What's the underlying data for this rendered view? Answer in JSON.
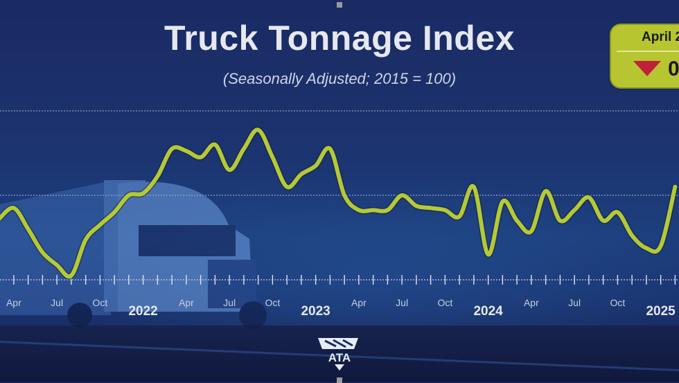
{
  "chart_data": {
    "type": "line",
    "title": "Truck Tonnage Index",
    "subtitle": "(Seasonally Adjusted; 2015 = 100)",
    "xlabel": "",
    "ylabel": "",
    "ylim": [
      110,
      118
    ],
    "grid": true,
    "x_start": "2021-03",
    "series": [
      {
        "name": "Truck Tonnage Index",
        "color": "#b5c935",
        "values": [
          112.9,
          113.4,
          112.4,
          111.3,
          110.7,
          110.2,
          111.9,
          112.6,
          113.2,
          114.0,
          114.1,
          114.9,
          116.2,
          116.1,
          115.8,
          116.4,
          115.2,
          116.2,
          117.1,
          115.8,
          114.4,
          115.0,
          115.4,
          116.2,
          114.0,
          113.3,
          113.3,
          113.3,
          114.0,
          113.5,
          113.4,
          113.3,
          113.0,
          114.4,
          111.2,
          113.7,
          112.8,
          112.3,
          114.2,
          112.8,
          113.3,
          113.9,
          112.8,
          113.2,
          112.1,
          111.5,
          111.6,
          114.4
        ]
      }
    ],
    "x_tick_labels": [
      {
        "label": "Apr",
        "month": -9,
        "kind": "month"
      },
      {
        "label": "Jul",
        "month": -6,
        "kind": "month"
      },
      {
        "label": "Oct",
        "month": -3,
        "kind": "month"
      },
      {
        "label": "2022",
        "month": 0,
        "kind": "year"
      },
      {
        "label": "Apr",
        "month": 3,
        "kind": "month"
      },
      {
        "label": "Jul",
        "month": 6,
        "kind": "month"
      },
      {
        "label": "Oct",
        "month": 9,
        "kind": "month"
      },
      {
        "label": "2023",
        "month": 12,
        "kind": "year"
      },
      {
        "label": "Apr",
        "month": 15,
        "kind": "month"
      },
      {
        "label": "Jul",
        "month": 18,
        "kind": "month"
      },
      {
        "label": "Oct",
        "month": 21,
        "kind": "month"
      },
      {
        "label": "2024",
        "month": 24,
        "kind": "year"
      },
      {
        "label": "Apr",
        "month": 27,
        "kind": "month"
      },
      {
        "label": "Jul",
        "month": 30,
        "kind": "month"
      },
      {
        "label": "Oct",
        "month": 33,
        "kind": "month"
      },
      {
        "label": "2025",
        "month": 36,
        "kind": "year"
      }
    ],
    "gridlines": [
      114,
      118
    ]
  },
  "badge": {
    "period": "April 2",
    "change": "0",
    "direction": "down",
    "color": "#b7c531"
  },
  "logo": {
    "text": "ATA"
  }
}
